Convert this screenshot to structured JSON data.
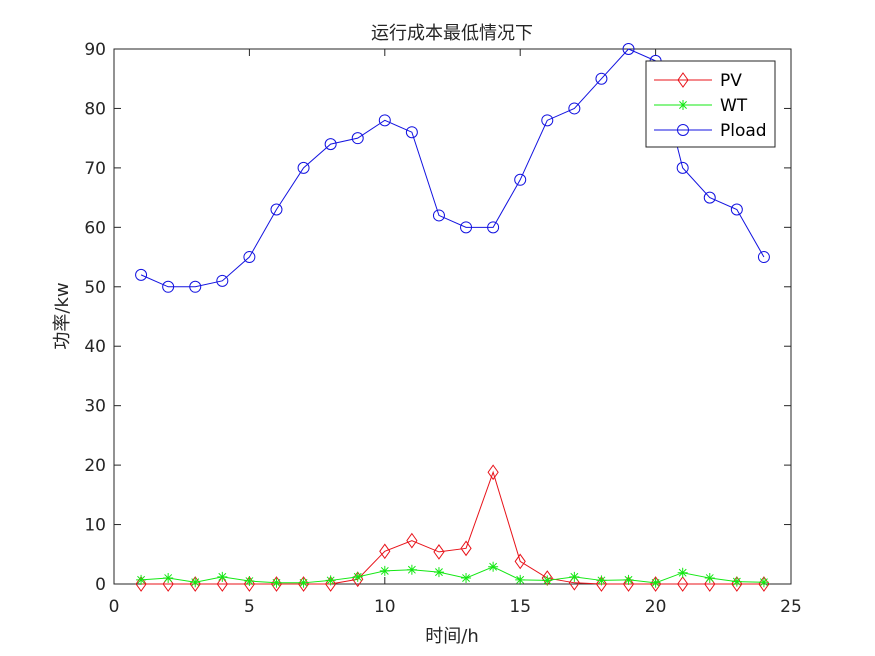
{
  "chart_data": {
    "type": "line",
    "title": "运行成本最低情况下",
    "xlabel": "时间/h",
    "ylabel": "功率/kw",
    "xlim": [
      0,
      25
    ],
    "ylim": [
      0,
      90
    ],
    "xticks": [
      0,
      5,
      10,
      15,
      20,
      25
    ],
    "yticks": [
      0,
      10,
      20,
      30,
      40,
      50,
      60,
      70,
      80,
      90
    ],
    "grid": false,
    "legend_position": "top-right",
    "x": [
      1,
      2,
      3,
      4,
      5,
      6,
      7,
      8,
      9,
      10,
      11,
      12,
      13,
      14,
      15,
      16,
      17,
      18,
      19,
      20,
      21,
      22,
      23,
      24
    ],
    "series": [
      {
        "name": "PV",
        "color": "#e8131a",
        "marker": "diamond",
        "values": [
          0,
          0,
          0,
          0,
          0,
          0,
          0,
          0,
          0.8,
          5.5,
          7.3,
          5.4,
          6,
          18.8,
          3.8,
          1,
          0.2,
          0,
          0,
          0,
          0,
          0,
          0,
          0
        ]
      },
      {
        "name": "WT",
        "color": "#13e813",
        "marker": "star",
        "values": [
          0.7,
          1,
          0.3,
          1.2,
          0.5,
          0.2,
          0.2,
          0.6,
          1.2,
          2.2,
          2.4,
          2,
          1,
          2.9,
          0.7,
          0.6,
          1.2,
          0.6,
          0.7,
          0.2,
          1.9,
          1,
          0.4,
          0.3
        ]
      },
      {
        "name": "Pload",
        "color": "#1313e0",
        "marker": "circle",
        "values": [
          52,
          50,
          50,
          51,
          55,
          63,
          70,
          74,
          75,
          78,
          76,
          62,
          60,
          60,
          68,
          78,
          80,
          85,
          90,
          88,
          70,
          65,
          63,
          55
        ]
      }
    ]
  }
}
